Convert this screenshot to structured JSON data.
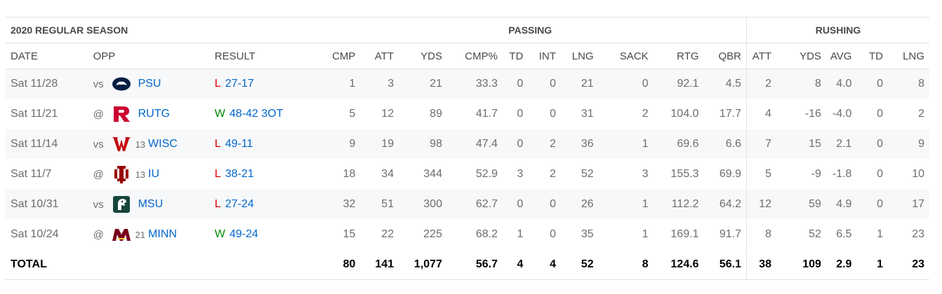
{
  "header": {
    "season": "2020 REGULAR SEASON",
    "passing": "PASSING",
    "rushing": "RUSHING"
  },
  "columns": {
    "date": "DATE",
    "opp": "OPP",
    "result": "RESULT",
    "cmp": "CMP",
    "att": "ATT",
    "yds": "YDS",
    "cmp_pct": "CMP%",
    "td": "TD",
    "int": "INT",
    "lng": "LNG",
    "sack": "SACK",
    "rtg": "RTG",
    "qbr": "QBR",
    "r_att": "ATT",
    "r_yds": "YDS",
    "r_avg": "AVG",
    "r_td": "TD",
    "r_lng": "LNG"
  },
  "games": [
    {
      "date": "Sat 11/28",
      "loc": "vs",
      "rank": "",
      "team": "PSU",
      "logo": "psu-logo-icon",
      "wl": "L",
      "score": "27-17",
      "cmp": "1",
      "att": "3",
      "yds": "21",
      "cmp_pct": "33.3",
      "td": "0",
      "int": "0",
      "lng": "21",
      "sack": "0",
      "rtg": "92.1",
      "qbr": "4.5",
      "r_att": "2",
      "r_yds": "8",
      "r_avg": "4.0",
      "r_td": "0",
      "r_lng": "8"
    },
    {
      "date": "Sat 11/21",
      "loc": "@",
      "rank": "",
      "team": "RUTG",
      "logo": "rutgers-logo-icon",
      "wl": "W",
      "score": "48-42 3OT",
      "cmp": "5",
      "att": "12",
      "yds": "89",
      "cmp_pct": "41.7",
      "td": "0",
      "int": "0",
      "lng": "31",
      "sack": "2",
      "rtg": "104.0",
      "qbr": "17.7",
      "r_att": "4",
      "r_yds": "-16",
      "r_avg": "-4.0",
      "r_td": "0",
      "r_lng": "2"
    },
    {
      "date": "Sat 11/14",
      "loc": "vs",
      "rank": "13",
      "team": "WISC",
      "logo": "wisconsin-logo-icon",
      "wl": "L",
      "score": "49-11",
      "cmp": "9",
      "att": "19",
      "yds": "98",
      "cmp_pct": "47.4",
      "td": "0",
      "int": "2",
      "lng": "36",
      "sack": "1",
      "rtg": "69.6",
      "qbr": "6.6",
      "r_att": "7",
      "r_yds": "15",
      "r_avg": "2.1",
      "r_td": "0",
      "r_lng": "9"
    },
    {
      "date": "Sat 11/7",
      "loc": "@",
      "rank": "13",
      "team": "IU",
      "logo": "indiana-logo-icon",
      "wl": "L",
      "score": "38-21",
      "cmp": "18",
      "att": "34",
      "yds": "344",
      "cmp_pct": "52.9",
      "td": "3",
      "int": "2",
      "lng": "52",
      "sack": "3",
      "rtg": "155.3",
      "qbr": "69.9",
      "r_att": "5",
      "r_yds": "-9",
      "r_avg": "-1.8",
      "r_td": "0",
      "r_lng": "10"
    },
    {
      "date": "Sat 10/31",
      "loc": "vs",
      "rank": "",
      "team": "MSU",
      "logo": "msu-logo-icon",
      "wl": "L",
      "score": "27-24",
      "cmp": "32",
      "att": "51",
      "yds": "300",
      "cmp_pct": "62.7",
      "td": "0",
      "int": "0",
      "lng": "26",
      "sack": "1",
      "rtg": "112.2",
      "qbr": "64.2",
      "r_att": "12",
      "r_yds": "59",
      "r_avg": "4.9",
      "r_td": "0",
      "r_lng": "17"
    },
    {
      "date": "Sat 10/24",
      "loc": "@",
      "rank": "21",
      "team": "MINN",
      "logo": "minnesota-logo-icon",
      "wl": "W",
      "score": "49-24",
      "cmp": "15",
      "att": "22",
      "yds": "225",
      "cmp_pct": "68.2",
      "td": "1",
      "int": "0",
      "lng": "35",
      "sack": "1",
      "rtg": "169.1",
      "qbr": "91.7",
      "r_att": "8",
      "r_yds": "52",
      "r_avg": "6.5",
      "r_td": "1",
      "r_lng": "23"
    }
  ],
  "total": {
    "label": "TOTAL",
    "cmp": "80",
    "att": "141",
    "yds": "1,077",
    "cmp_pct": "56.7",
    "td": "4",
    "int": "4",
    "lng": "52",
    "sack": "8",
    "rtg": "124.6",
    "qbr": "56.1",
    "r_att": "38",
    "r_yds": "109",
    "r_avg": "2.9",
    "r_td": "1",
    "r_lng": "23"
  },
  "colors": {
    "loss": "#dd0000",
    "win": "#008a00",
    "link": "#0066cc",
    "psu": "#041e42",
    "rutgers": "#cc0033",
    "wisconsin": "#c5050c",
    "indiana": "#990000",
    "msu": "#18453b",
    "minnesota": "#7a0019"
  }
}
